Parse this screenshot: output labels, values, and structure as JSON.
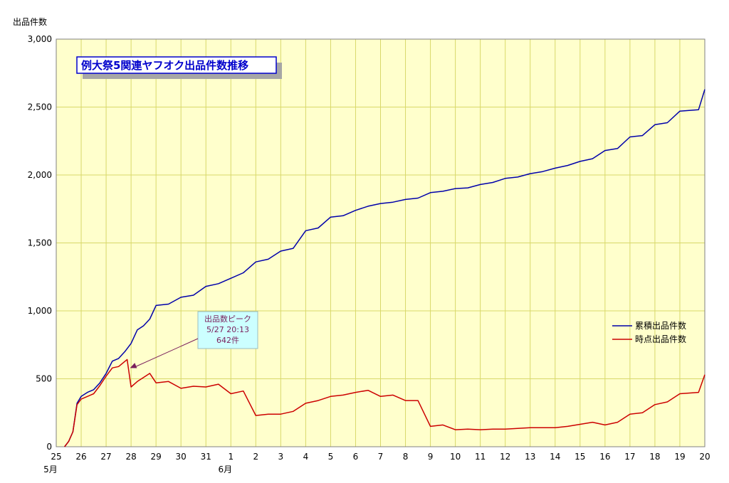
{
  "chart_data": {
    "type": "line",
    "title": "例大祭5関連ヤフオク出品件数推移",
    "ylabel": "出品件数",
    "xlabel": "",
    "ylim": [
      0,
      3000
    ],
    "y_ticks": [
      0,
      500,
      1000,
      1500,
      2000,
      2500,
      3000
    ],
    "y_tick_labels": [
      "0",
      "500",
      "1,000",
      "1,500",
      "2,000",
      "2,500",
      "3,000"
    ],
    "x_range": [
      "5/25",
      "6/20"
    ],
    "x_tick_labels": [
      "25",
      "26",
      "27",
      "28",
      "29",
      "30",
      "31",
      "1",
      "2",
      "3",
      "4",
      "5",
      "6",
      "7",
      "8",
      "9",
      "10",
      "11",
      "12",
      "13",
      "14",
      "15",
      "16",
      "17",
      "18",
      "19",
      "20"
    ],
    "month_labels": [
      {
        "at": "5/25",
        "label": "5月"
      },
      {
        "at": "6/1",
        "label": "6月"
      }
    ],
    "grid": true,
    "background": "#ffffcc",
    "legend_position": "right",
    "series": [
      {
        "name": "累積出品件数",
        "color": "#0000aa",
        "points": [
          [
            "5/25 08:00",
            0
          ],
          [
            "5/25 12:00",
            40
          ],
          [
            "5/25 16:00",
            110
          ],
          [
            "5/25 20:00",
            320
          ],
          [
            "5/26 00:00",
            370
          ],
          [
            "5/26 06:00",
            400
          ],
          [
            "5/26 12:00",
            420
          ],
          [
            "5/26 18:00",
            470
          ],
          [
            "5/27 00:00",
            540
          ],
          [
            "5/27 06:00",
            630
          ],
          [
            "5/27 12:00",
            650
          ],
          [
            "5/27 18:00",
            700
          ],
          [
            "5/28 00:00",
            760
          ],
          [
            "5/28 06:00",
            860
          ],
          [
            "5/28 12:00",
            890
          ],
          [
            "5/28 18:00",
            940
          ],
          [
            "5/29 00:00",
            1040
          ],
          [
            "5/29 12:00",
            1050
          ],
          [
            "5/30 00:00",
            1100
          ],
          [
            "5/30 12:00",
            1115
          ],
          [
            "5/31 00:00",
            1180
          ],
          [
            "5/31 12:00",
            1200
          ],
          [
            "6/1 00:00",
            1240
          ],
          [
            "6/1 12:00",
            1280
          ],
          [
            "6/2 00:00",
            1360
          ],
          [
            "6/2 12:00",
            1380
          ],
          [
            "6/3 00:00",
            1440
          ],
          [
            "6/3 12:00",
            1460
          ],
          [
            "6/4 00:00",
            1590
          ],
          [
            "6/4 12:00",
            1610
          ],
          [
            "6/5 00:00",
            1690
          ],
          [
            "6/5 12:00",
            1700
          ],
          [
            "6/6 00:00",
            1740
          ],
          [
            "6/6 12:00",
            1770
          ],
          [
            "6/7 00:00",
            1790
          ],
          [
            "6/7 12:00",
            1800
          ],
          [
            "6/8 00:00",
            1820
          ],
          [
            "6/8 12:00",
            1830
          ],
          [
            "6/9 00:00",
            1870
          ],
          [
            "6/9 12:00",
            1880
          ],
          [
            "6/10 00:00",
            1900
          ],
          [
            "6/10 12:00",
            1905
          ],
          [
            "6/11 00:00",
            1930
          ],
          [
            "6/11 12:00",
            1945
          ],
          [
            "6/12 00:00",
            1975
          ],
          [
            "6/12 12:00",
            1985
          ],
          [
            "6/13 00:00",
            2010
          ],
          [
            "6/13 12:00",
            2025
          ],
          [
            "6/14 00:00",
            2050
          ],
          [
            "6/14 12:00",
            2070
          ],
          [
            "6/15 00:00",
            2100
          ],
          [
            "6/15 12:00",
            2120
          ],
          [
            "6/16 00:00",
            2180
          ],
          [
            "6/16 12:00",
            2195
          ],
          [
            "6/17 00:00",
            2280
          ],
          [
            "6/17 12:00",
            2290
          ],
          [
            "6/18 00:00",
            2370
          ],
          [
            "6/18 12:00",
            2385
          ],
          [
            "6/19 00:00",
            2470
          ],
          [
            "6/19 18:00",
            2480
          ],
          [
            "6/20 00:00",
            2630
          ]
        ]
      },
      {
        "name": "時点出品件数",
        "color": "#cc0000",
        "points": [
          [
            "5/25 08:00",
            0
          ],
          [
            "5/25 12:00",
            40
          ],
          [
            "5/25 16:00",
            110
          ],
          [
            "5/25 20:00",
            310
          ],
          [
            "5/26 00:00",
            350
          ],
          [
            "5/26 06:00",
            370
          ],
          [
            "5/26 12:00",
            390
          ],
          [
            "5/26 18:00",
            450
          ],
          [
            "5/27 00:00",
            520
          ],
          [
            "5/27 06:00",
            580
          ],
          [
            "5/27 12:00",
            590
          ],
          [
            "5/27 20:13",
            642
          ],
          [
            "5/28 00:00",
            440
          ],
          [
            "5/28 06:00",
            480
          ],
          [
            "5/28 12:00",
            510
          ],
          [
            "5/28 18:00",
            540
          ],
          [
            "5/29 00:00",
            470
          ],
          [
            "5/29 12:00",
            480
          ],
          [
            "5/30 00:00",
            430
          ],
          [
            "5/30 12:00",
            445
          ],
          [
            "5/31 00:00",
            440
          ],
          [
            "5/31 12:00",
            460
          ],
          [
            "6/1 00:00",
            390
          ],
          [
            "6/1 12:00",
            410
          ],
          [
            "6/2 00:00",
            230
          ],
          [
            "6/2 12:00",
            240
          ],
          [
            "6/3 00:00",
            240
          ],
          [
            "6/3 12:00",
            260
          ],
          [
            "6/4 00:00",
            320
          ],
          [
            "6/4 12:00",
            340
          ],
          [
            "6/5 00:00",
            370
          ],
          [
            "6/5 12:00",
            380
          ],
          [
            "6/6 00:00",
            400
          ],
          [
            "6/6 12:00",
            415
          ],
          [
            "6/7 00:00",
            370
          ],
          [
            "6/7 12:00",
            380
          ],
          [
            "6/8 00:00",
            340
          ],
          [
            "6/8 12:00",
            340
          ],
          [
            "6/9 00:00",
            150
          ],
          [
            "6/9 12:00",
            160
          ],
          [
            "6/10 00:00",
            125
          ],
          [
            "6/10 12:00",
            130
          ],
          [
            "6/11 00:00",
            125
          ],
          [
            "6/11 12:00",
            130
          ],
          [
            "6/12 00:00",
            130
          ],
          [
            "6/12 12:00",
            135
          ],
          [
            "6/13 00:00",
            140
          ],
          [
            "6/13 12:00",
            140
          ],
          [
            "6/14 00:00",
            140
          ],
          [
            "6/14 12:00",
            150
          ],
          [
            "6/15 00:00",
            165
          ],
          [
            "6/15 12:00",
            180
          ],
          [
            "6/16 00:00",
            160
          ],
          [
            "6/16 12:00",
            180
          ],
          [
            "6/17 00:00",
            240
          ],
          [
            "6/17 12:00",
            250
          ],
          [
            "6/18 00:00",
            310
          ],
          [
            "6/18 12:00",
            330
          ],
          [
            "6/19 00:00",
            390
          ],
          [
            "6/19 18:00",
            400
          ],
          [
            "6/20 00:00",
            530
          ]
        ]
      }
    ],
    "annotations": [
      {
        "lines": [
          "出品数ピーク",
          "5/27 20:13",
          "642件"
        ],
        "points_to": [
          "5/27 20:13",
          642
        ]
      }
    ]
  }
}
